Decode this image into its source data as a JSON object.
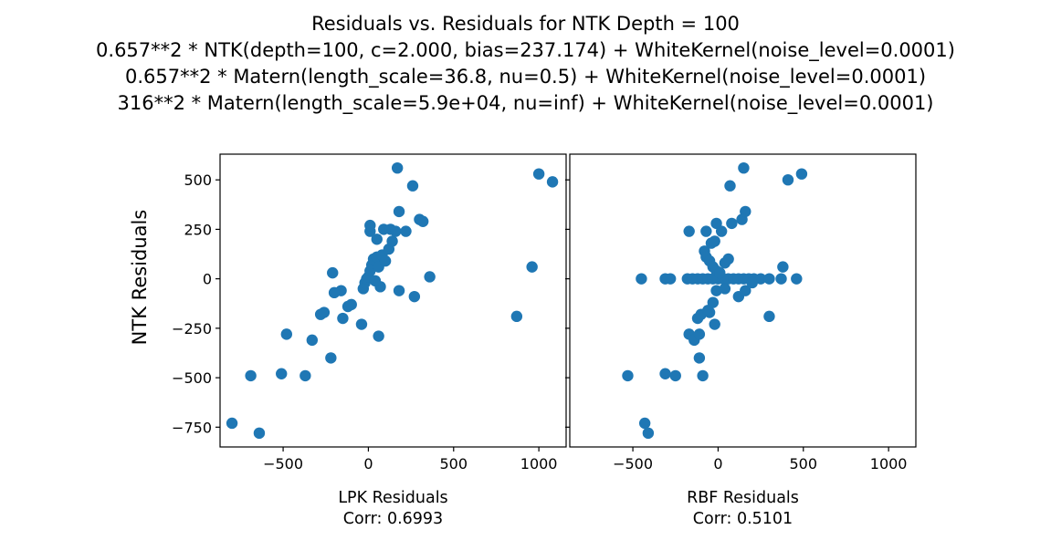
{
  "title_lines": [
    "Residuals vs. Residuals for NTK Depth = 100",
    "0.657**2 * NTK(depth=100, c=2.000, bias=237.174) + WhiteKernel(noise_level=0.0001)",
    "0.657**2 * Matern(length_scale=36.8, nu=0.5) + WhiteKernel(noise_level=0.0001)",
    "316**2 * Matern(length_scale=5.9e+04, nu=inf) + WhiteKernel(noise_level=0.0001)"
  ],
  "colors": {
    "marker": "#1f77b4",
    "axes": "#000000"
  },
  "chart_data": [
    {
      "type": "scatter",
      "xlabel": "LPK Residuals",
      "corr_label": "Corr: 0.6993",
      "ylabel": "NTK Residuals",
      "xlim": [
        -870,
        1160
      ],
      "ylim": [
        -850,
        630
      ],
      "xticks": [
        -500,
        0,
        500,
        1000
      ],
      "xtick_labels": [
        "−500",
        "0",
        "500",
        "1000"
      ],
      "yticks": [
        -750,
        -500,
        -250,
        0,
        250,
        500
      ],
      "ytick_labels": [
        "−750",
        "−500",
        "−250",
        "0",
        "250",
        "500"
      ],
      "points": [
        [
          -800,
          -730
        ],
        [
          -640,
          -780
        ],
        [
          -690,
          -490
        ],
        [
          -510,
          -480
        ],
        [
          -370,
          -490
        ],
        [
          -480,
          -280
        ],
        [
          -220,
          -400
        ],
        [
          -330,
          -310
        ],
        [
          -280,
          -180
        ],
        [
          -260,
          -170
        ],
        [
          -150,
          -200
        ],
        [
          -120,
          -140
        ],
        [
          -100,
          -130
        ],
        [
          -160,
          -60
        ],
        [
          -200,
          -70
        ],
        [
          -210,
          30
        ],
        [
          -40,
          -230
        ],
        [
          60,
          -290
        ],
        [
          70,
          -40
        ],
        [
          180,
          -60
        ],
        [
          270,
          -90
        ],
        [
          360,
          10
        ],
        [
          -30,
          -50
        ],
        [
          -20,
          -20
        ],
        [
          -10,
          0
        ],
        [
          0,
          10
        ],
        [
          10,
          40
        ],
        [
          20,
          70
        ],
        [
          30,
          100
        ],
        [
          40,
          -10
        ],
        [
          50,
          110
        ],
        [
          60,
          60
        ],
        [
          80,
          120
        ],
        [
          100,
          90
        ],
        [
          120,
          150
        ],
        [
          140,
          190
        ],
        [
          90,
          250
        ],
        [
          130,
          250
        ],
        [
          160,
          240
        ],
        [
          220,
          240
        ],
        [
          180,
          340
        ],
        [
          10,
          240
        ],
        [
          10,
          270
        ],
        [
          50,
          200
        ],
        [
          300,
          300
        ],
        [
          320,
          290
        ],
        [
          260,
          470
        ],
        [
          170,
          560
        ],
        [
          870,
          -190
        ],
        [
          960,
          60
        ],
        [
          1000,
          530
        ],
        [
          1080,
          490
        ]
      ]
    },
    {
      "type": "scatter",
      "xlabel": "RBF Residuals",
      "corr_label": "Corr: 0.5101",
      "xlim": [
        -870,
        1160
      ],
      "ylim": [
        -850,
        630
      ],
      "xticks": [
        -500,
        0,
        500,
        1000
      ],
      "xtick_labels": [
        "−500",
        "0",
        "500",
        "1000"
      ],
      "yticks": [
        -750,
        -500,
        -250,
        0,
        250,
        500
      ],
      "points": [
        [
          -430,
          -730
        ],
        [
          -410,
          -780
        ],
        [
          -530,
          -490
        ],
        [
          -310,
          -480
        ],
        [
          -250,
          -490
        ],
        [
          -450,
          0
        ],
        [
          -310,
          0
        ],
        [
          -280,
          0
        ],
        [
          -180,
          0
        ],
        [
          -150,
          0
        ],
        [
          -120,
          0
        ],
        [
          -90,
          0
        ],
        [
          -60,
          0
        ],
        [
          -30,
          0
        ],
        [
          0,
          0
        ],
        [
          30,
          0
        ],
        [
          60,
          0
        ],
        [
          90,
          0
        ],
        [
          120,
          0
        ],
        [
          150,
          0
        ],
        [
          180,
          0
        ],
        [
          210,
          0
        ],
        [
          250,
          0
        ],
        [
          300,
          0
        ],
        [
          370,
          0
        ],
        [
          460,
          0
        ],
        [
          -170,
          -280
        ],
        [
          -140,
          -310
        ],
        [
          -110,
          -400
        ],
        [
          -110,
          -280
        ],
        [
          -90,
          -490
        ],
        [
          -120,
          -200
        ],
        [
          -100,
          -180
        ],
        [
          -60,
          -160
        ],
        [
          -50,
          -170
        ],
        [
          -20,
          -230
        ],
        [
          -30,
          -120
        ],
        [
          -10,
          -60
        ],
        [
          40,
          -50
        ],
        [
          120,
          -90
        ],
        [
          160,
          -60
        ],
        [
          200,
          -20
        ],
        [
          300,
          -190
        ],
        [
          -170,
          240
        ],
        [
          -70,
          240
        ],
        [
          -40,
          180
        ],
        [
          -20,
          190
        ],
        [
          -10,
          280
        ],
        [
          20,
          240
        ],
        [
          70,
          470
        ],
        [
          80,
          280
        ],
        [
          140,
          300
        ],
        [
          160,
          340
        ],
        [
          150,
          560
        ],
        [
          -80,
          140
        ],
        [
          -70,
          110
        ],
        [
          -50,
          90
        ],
        [
          -30,
          60
        ],
        [
          -10,
          40
        ],
        [
          10,
          30
        ],
        [
          40,
          80
        ],
        [
          60,
          100
        ],
        [
          380,
          60
        ],
        [
          410,
          500
        ],
        [
          490,
          530
        ]
      ]
    }
  ]
}
